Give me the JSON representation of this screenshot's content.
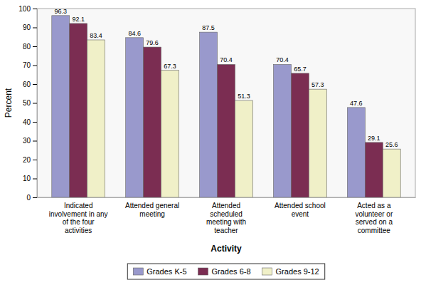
{
  "chart_data": {
    "type": "bar",
    "categories": [
      "Indicated\ninvolvement in any\nof the four\nactivities",
      "Attended general\nmeeting",
      "Attended\nscheduled\nmeeting with\nteacher",
      "Attended school\nevent",
      "Acted as a\nvolunteer or\nserved on a\ncommittee"
    ],
    "series": [
      {
        "name": "Grades K-5",
        "color": "#9999cc",
        "values": [
          96.3,
          84.6,
          87.5,
          70.4,
          47.6
        ]
      },
      {
        "name": "Grades 6-8",
        "color": "#7b2d52",
        "values": [
          92.1,
          79.6,
          70.4,
          65.7,
          29.1
        ]
      },
      {
        "name": "Grades 9-12",
        "color": "#f0f0c8",
        "values": [
          83.4,
          67.3,
          51.3,
          57.3,
          25.6
        ]
      }
    ],
    "x_label": "Activity",
    "y_label": "Percent",
    "ylim": [
      0,
      100
    ],
    "yticks": [
      0,
      10,
      20,
      30,
      40,
      50,
      60,
      70,
      80,
      90,
      100
    ],
    "grid": false,
    "legend": "bottom",
    "data_labels": true
  }
}
